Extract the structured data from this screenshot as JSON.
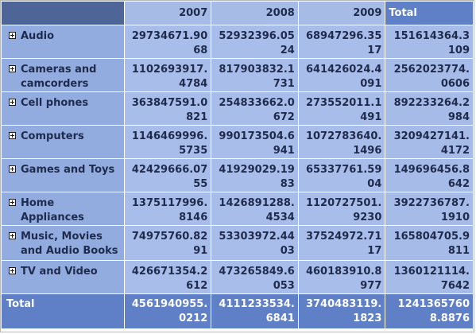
{
  "columns": {
    "c2007": "2007",
    "c2008": "2008",
    "c2009": "2009",
    "total": "Total"
  },
  "rows": [
    {
      "label": "Audio",
      "v2007": "29734671.9068",
      "v2008": "52932396.0524",
      "v2009": "68947296.3517",
      "total": "151614364.3109"
    },
    {
      "label": "Cameras and camcorders",
      "v2007": "1102693917.4784",
      "v2008": "817903832.1731",
      "v2009": "641426024.4091",
      "total": "2562023774.0606"
    },
    {
      "label": "Cell phones",
      "v2007": "363847591.0821",
      "v2008": "254833662.0672",
      "v2009": "273552011.1491",
      "total": "892233264.2984"
    },
    {
      "label": "Computers",
      "v2007": "1146469996.5735",
      "v2008": "990173504.6941",
      "v2009": "1072783640.1496",
      "total": "3209427141.4172"
    },
    {
      "label": "Games and Toys",
      "v2007": "42429666.0755",
      "v2008": "41929029.1983",
      "v2009": "65337761.5904",
      "total": "149696456.8642"
    },
    {
      "label": "Home Appliances",
      "v2007": "1375117996.8146",
      "v2008": "1426891288.4534",
      "v2009": "1120727501.9230",
      "total": "3922736787.1910"
    },
    {
      "label": "Music, Movies and Audio Books",
      "v2007": "74975760.8291",
      "v2008": "53303972.4403",
      "v2009": "37524972.7117",
      "total": "165804705.9811"
    },
    {
      "label": "TV and Video",
      "v2007": "426671354.2612",
      "v2008": "473265849.6053",
      "v2009": "460183910.8977",
      "total": "1360121114.7642"
    }
  ],
  "grand_total": {
    "label": "Total",
    "v2007": "4561940955.0212",
    "v2008": "4111233534.6841",
    "v2009": "3740483119.1823",
    "total": "12413657608.8876"
  },
  "icons": {
    "expand": "plus-box-icon"
  }
}
